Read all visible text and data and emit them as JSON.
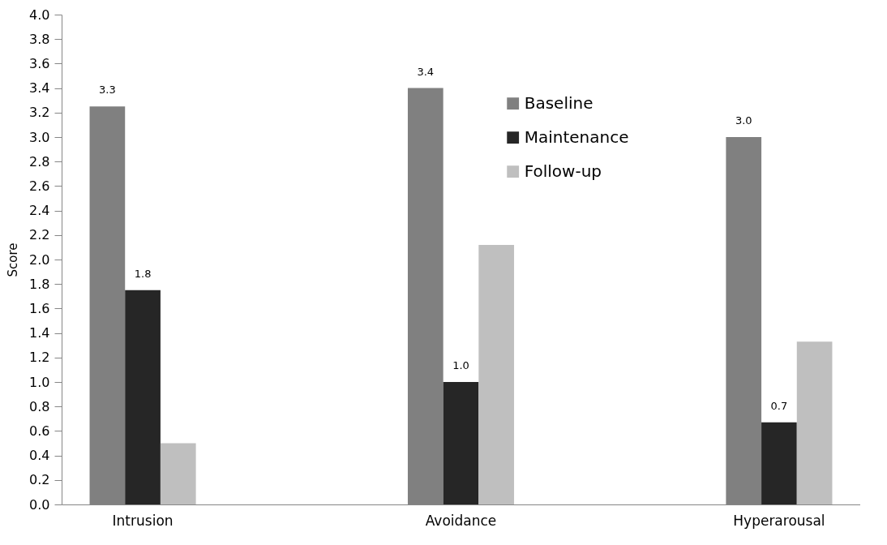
{
  "chart_data": {
    "type": "bar",
    "ylabel": "Score",
    "categories": [
      "Intrusion",
      "Avoidance",
      "Hyperarousal"
    ],
    "series": [
      {
        "name": "Baseline",
        "color": "#808080",
        "values": [
          3.25,
          3.4,
          3.0
        ],
        "value_labels": [
          "3.3",
          "3.4",
          "3.0"
        ]
      },
      {
        "name": "Maintenance",
        "color": "#262626",
        "values": [
          1.75,
          1.0,
          0.67
        ],
        "value_labels": [
          "1.8",
          "1.0",
          "0.7"
        ]
      },
      {
        "name": "Follow-up",
        "color": "#bfbfbf",
        "values": [
          0.5,
          2.12,
          1.33
        ]
      }
    ],
    "ylim": [
      0,
      4.0
    ],
    "yticks": [
      {
        "value": 0,
        "label": "0.0"
      },
      {
        "value": 0.2,
        "label": "0.2"
      },
      {
        "value": 0.4,
        "label": "0.4"
      },
      {
        "value": 0.6,
        "label": "0.6"
      },
      {
        "value": 0.8,
        "label": "0.8"
      },
      {
        "value": 1.0,
        "label": "1.0"
      },
      {
        "value": 1.2,
        "label": "1.2"
      },
      {
        "value": 1.4,
        "label": "1.4"
      },
      {
        "value": 1.6,
        "label": "1.6"
      },
      {
        "value": 1.8,
        "label": "1.8"
      },
      {
        "value": 2.0,
        "label": "2.0"
      },
      {
        "value": 2.2,
        "label": "2.2"
      },
      {
        "value": 2.4,
        "label": "2.4"
      },
      {
        "value": 2.6,
        "label": "2.6"
      },
      {
        "value": 2.8,
        "label": "2.8"
      },
      {
        "value": 3.0,
        "label": "3.0"
      },
      {
        "value": 3.2,
        "label": "3.2"
      },
      {
        "value": 3.4,
        "label": "3.4"
      },
      {
        "value": 3.6,
        "label": "3.6"
      },
      {
        "value": 3.8,
        "label": "3.8"
      },
      {
        "value": 4.0,
        "label": "4.0"
      }
    ],
    "grid": false,
    "legend": "top right"
  }
}
